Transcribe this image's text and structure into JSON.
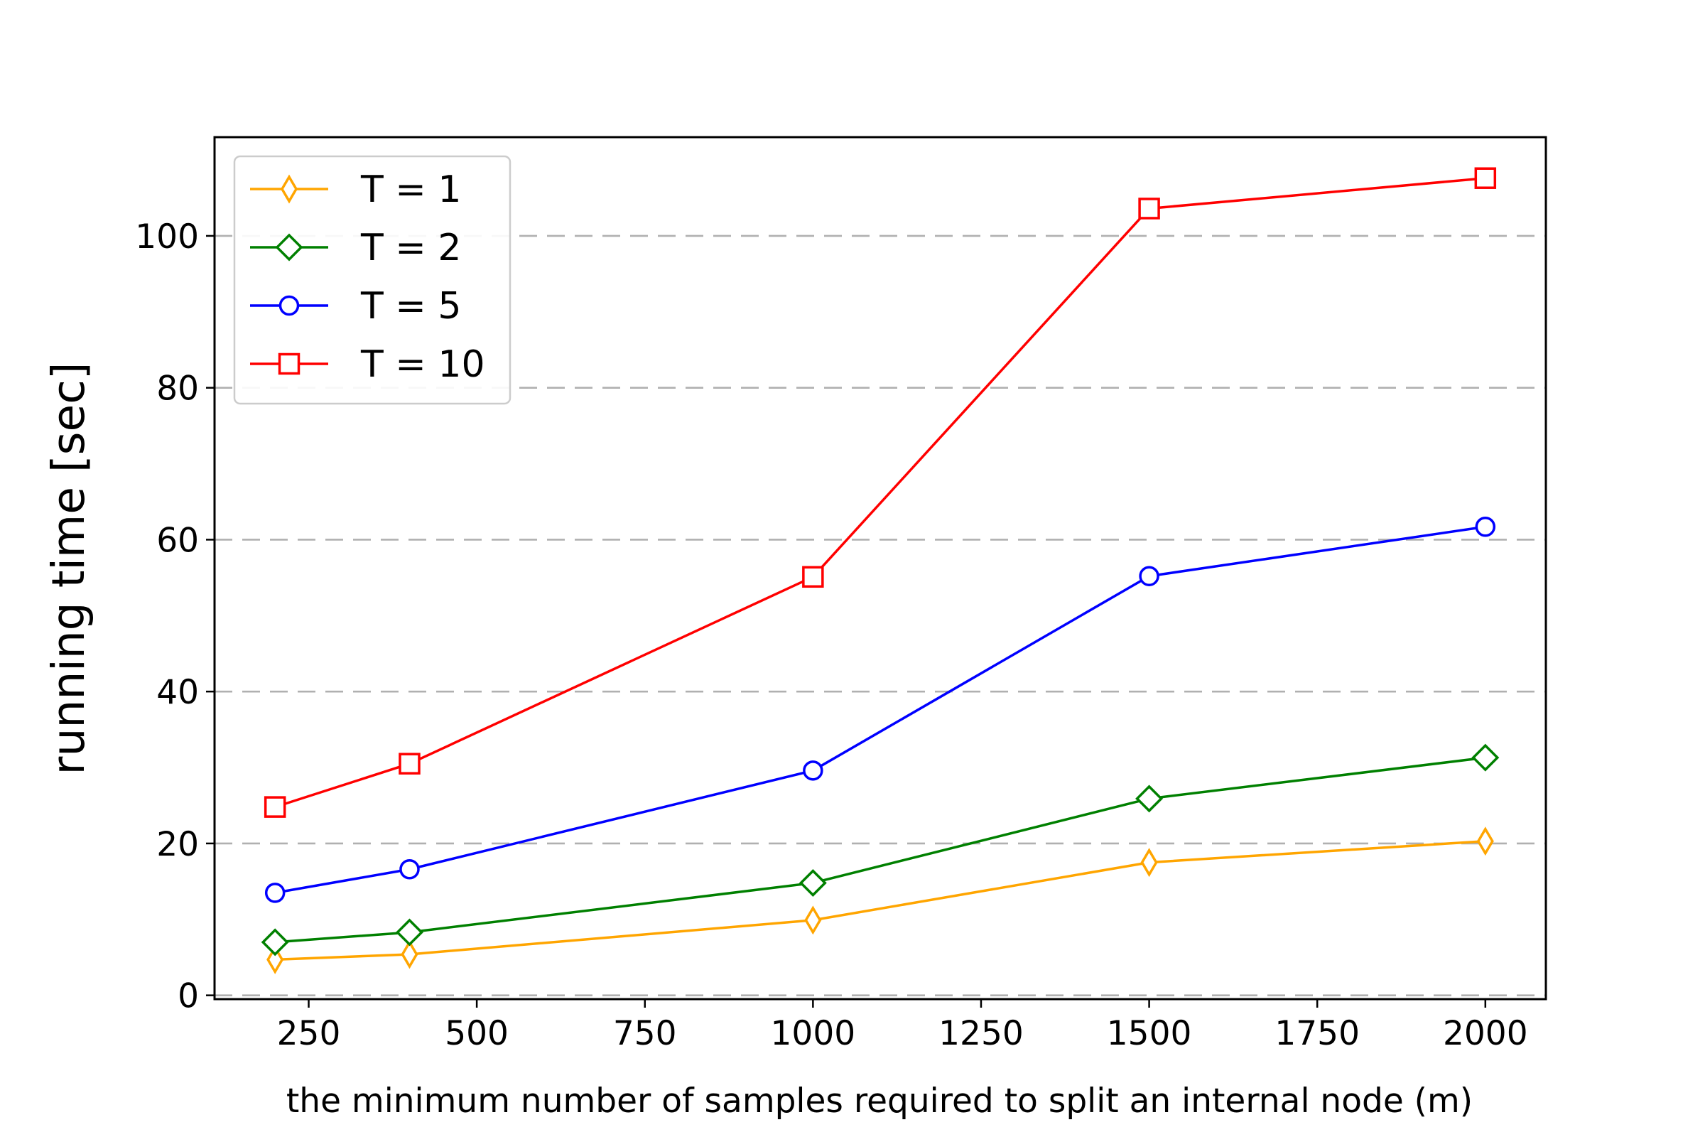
{
  "chart_data": {
    "type": "line",
    "title": "",
    "xlabel": "the minimum number of samples required to split an internal node (m)",
    "ylabel": "running time [sec]",
    "x": [
      200,
      400,
      1000,
      1500,
      2000
    ],
    "xlim": [
      110,
      2090
    ],
    "ylim": [
      -0.5,
      113
    ],
    "xticks": [
      250,
      500,
      750,
      1000,
      1250,
      1500,
      1750,
      2000
    ],
    "yticks": [
      0,
      20,
      40,
      60,
      80,
      100
    ],
    "grid": "horizontal dashed",
    "legend_position": "upper-left",
    "series": [
      {
        "name": "T = 1",
        "color": "#FFA500",
        "marker": "thin-diamond",
        "values": [
          4.7,
          5.4,
          9.9,
          17.5,
          20.3
        ]
      },
      {
        "name": "T = 2",
        "color": "#008000",
        "marker": "diamond",
        "values": [
          7.0,
          8.3,
          14.8,
          25.9,
          31.3
        ]
      },
      {
        "name": "T = 5",
        "color": "#0000FF",
        "marker": "circle",
        "values": [
          13.5,
          16.6,
          29.6,
          55.2,
          61.7
        ]
      },
      {
        "name": "T = 10",
        "color": "#FF0000",
        "marker": "square",
        "values": [
          24.8,
          30.5,
          55.1,
          103.6,
          107.6
        ]
      }
    ]
  }
}
